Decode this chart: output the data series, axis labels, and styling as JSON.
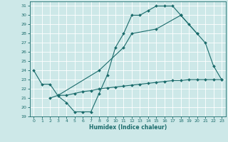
{
  "line1_x": [
    0,
    1,
    2,
    3,
    4,
    5,
    6,
    7,
    8,
    9,
    10,
    11,
    12,
    13,
    14,
    15,
    16,
    17,
    18,
    19,
    20,
    21,
    22,
    23
  ],
  "line1_y": [
    24,
    22.5,
    22.5,
    21.2,
    20.5,
    19.5,
    19.5,
    19.5,
    21.5,
    23.5,
    26.5,
    28,
    30,
    30,
    30.5,
    31,
    31,
    31,
    30,
    29,
    28,
    27,
    24.5,
    23
  ],
  "line2_x": [
    2,
    3,
    4,
    5,
    6,
    7,
    8,
    9,
    10,
    11,
    12,
    13,
    14,
    15,
    16,
    17,
    18,
    19,
    20,
    21,
    22,
    23
  ],
  "line2_y": [
    21.0,
    21.3,
    21.3,
    21.5,
    21.7,
    21.8,
    22.0,
    22.1,
    22.2,
    22.3,
    22.4,
    22.5,
    22.6,
    22.7,
    22.8,
    22.9,
    22.9,
    23.0,
    23.0,
    23.0,
    23.0,
    23.0
  ],
  "line3_x": [
    3,
    8,
    11,
    12,
    15,
    18,
    20
  ],
  "line3_y": [
    21.3,
    24.0,
    26.5,
    28.0,
    28.5,
    30.0,
    28.0
  ],
  "color": "#1a6b6b",
  "bg_color": "#cde8e8",
  "grid_color": "#b0d8d8",
  "xlabel": "Humidex (Indice chaleur)",
  "xlim": [
    -0.5,
    23.5
  ],
  "ylim": [
    19,
    31.5
  ],
  "yticks": [
    19,
    20,
    21,
    22,
    23,
    24,
    25,
    26,
    27,
    28,
    29,
    30,
    31
  ],
  "xticks": [
    0,
    1,
    2,
    3,
    4,
    5,
    6,
    7,
    8,
    9,
    10,
    11,
    12,
    13,
    14,
    15,
    16,
    17,
    18,
    19,
    20,
    21,
    22,
    23
  ],
  "marker": "D",
  "markersize": 2.0,
  "lw": 0.8
}
